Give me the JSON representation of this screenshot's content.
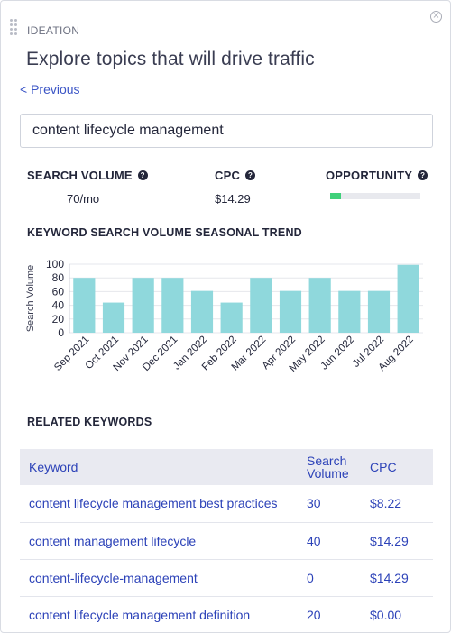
{
  "header": {
    "eyebrow": "IDEATION",
    "title": "Explore topics that will drive traffic",
    "previous_link": "< Previous"
  },
  "search": {
    "value": "content lifecycle management"
  },
  "metrics": {
    "search_volume": {
      "label": "SEARCH VOLUME",
      "value": "70/mo"
    },
    "cpc": {
      "label": "CPC",
      "value": "$14.29"
    },
    "opportunity": {
      "label": "OPPORTUNITY",
      "level": 0.12,
      "color": "#3fd17a"
    }
  },
  "chart_section_title": "KEYWORD SEARCH VOLUME SEASONAL TREND",
  "chart_data": {
    "type": "bar",
    "categories": [
      "Sep 2021",
      "Oct 2021",
      "Nov 2021",
      "Dec 2021",
      "Jan 2022",
      "Feb 2022",
      "Mar 2022",
      "Apr 2022",
      "May 2022",
      "Jun 2022",
      "Jul 2022",
      "Aug 2022"
    ],
    "values": [
      80,
      44,
      80,
      80,
      61,
      44,
      80,
      61,
      80,
      61,
      61,
      99
    ],
    "ylabel": "Search Volume",
    "xlabel": "",
    "ylim": [
      0,
      100
    ],
    "yticks": [
      0,
      20,
      40,
      60,
      80,
      100
    ],
    "bar_color": "#8fd8dc",
    "grid": true
  },
  "related": {
    "title": "RELATED KEYWORDS",
    "columns": [
      "Keyword",
      "Search Volume",
      "CPC"
    ],
    "rows": [
      {
        "keyword": "content lifecycle management best practices",
        "volume": "30",
        "cpc": "$8.22"
      },
      {
        "keyword": "content management lifecycle",
        "volume": "40",
        "cpc": "$14.29"
      },
      {
        "keyword": "content-lifecycle-management",
        "volume": "0",
        "cpc": "$14.29"
      },
      {
        "keyword": "content lifecycle management definition",
        "volume": "20",
        "cpc": "$0.00"
      }
    ]
  },
  "colors": {
    "link": "#3b55c6",
    "table_header_bg": "#e9eaf1"
  }
}
